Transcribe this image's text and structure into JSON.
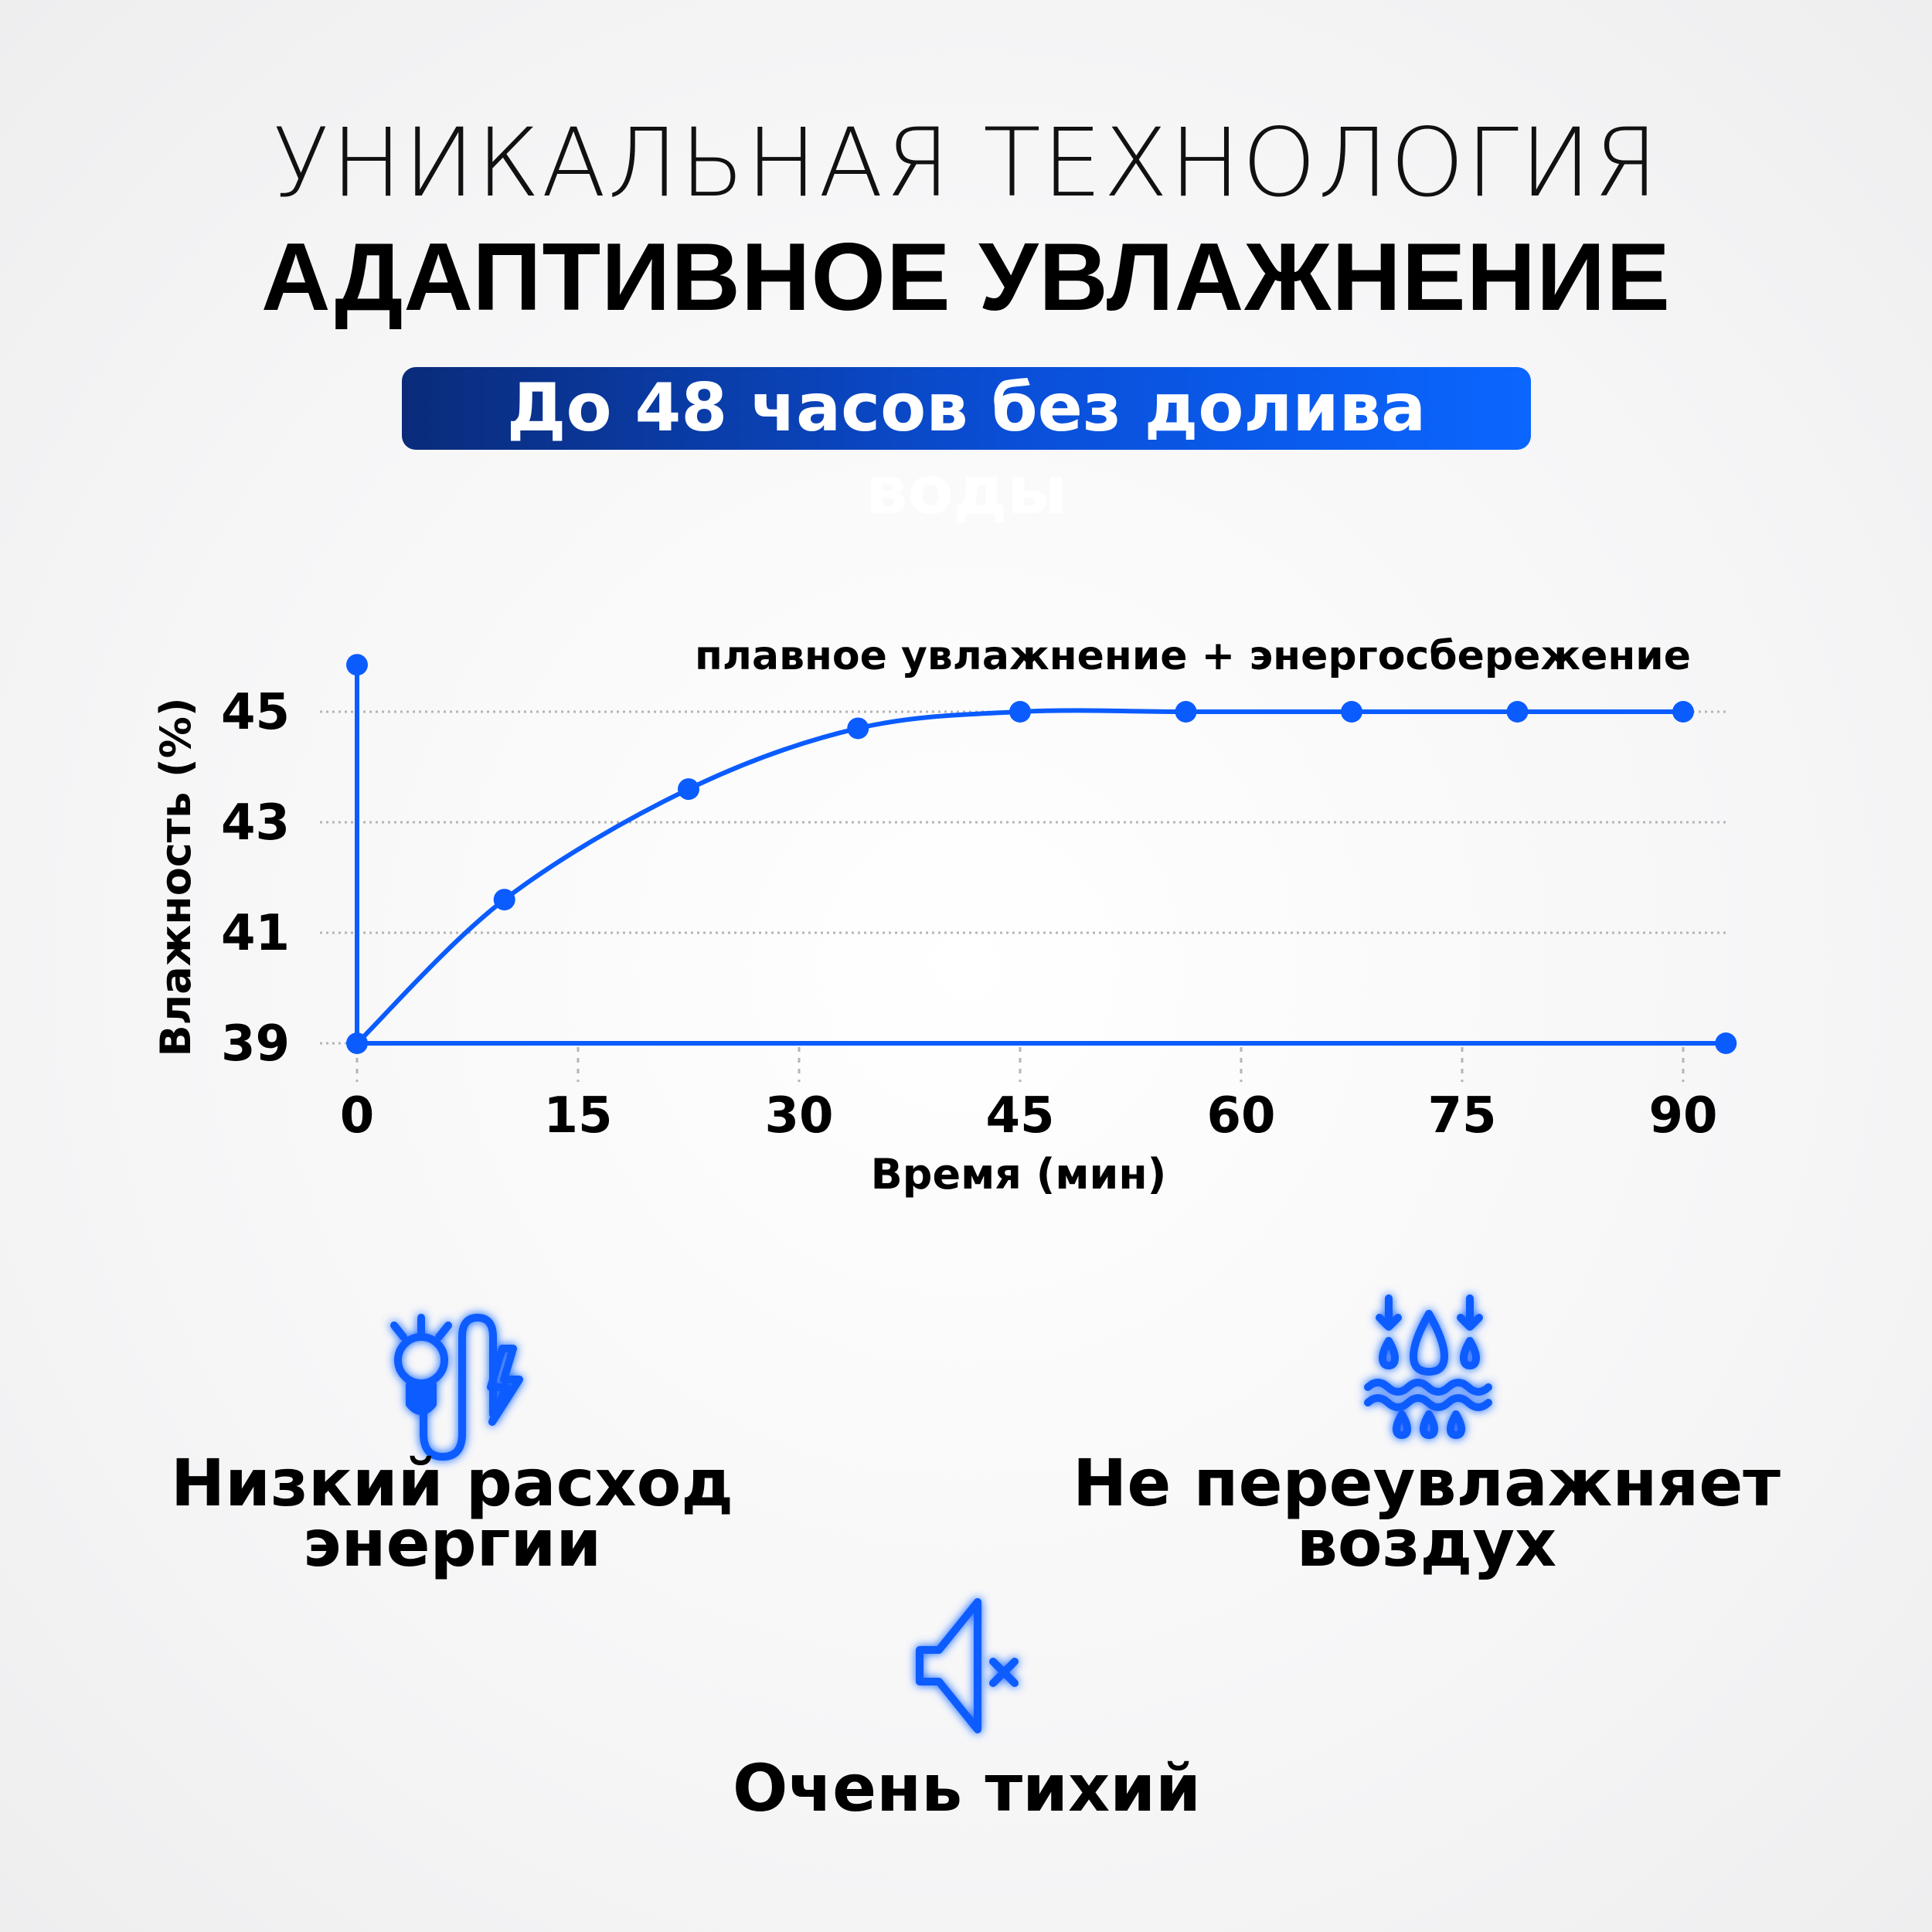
{
  "header": {
    "line1": "УНИКАЛЬНАЯ ТЕХНОЛОГИЯ",
    "line2": "АДАПТИВНОЕ УВЛАЖНЕНИЕ",
    "badge": "До 48 часов без долива воды"
  },
  "colors": {
    "accent": "#0b5cff",
    "text": "#000000",
    "grid": "#b5b5b5"
  },
  "chart_data": {
    "type": "line",
    "title": "",
    "annotation": "плавное увлажнение + энергосбережение",
    "xlabel": "Время (мин)",
    "ylabel": "Влажность (%)",
    "xlim": [
      0,
      90
    ],
    "ylim": [
      39,
      45
    ],
    "x_ticks": [
      "0",
      "15",
      "30",
      "45",
      "60",
      "75",
      "90"
    ],
    "y_ticks": [
      "39",
      "41",
      "43",
      "45"
    ],
    "grid": "horizontal dotted",
    "series": [
      {
        "x": [
          0,
          10,
          22.5,
          34,
          45,
          56.25,
          67.5,
          78.75,
          90
        ],
        "y": [
          39,
          41.6,
          43.6,
          44.7,
          45,
          45,
          45,
          45,
          45
        ]
      }
    ]
  },
  "features": [
    {
      "icon": "bulb-plug-lightning-icon",
      "line1": "Низкий расход",
      "line2": "энергии"
    },
    {
      "icon": "water-drops-waves-icon",
      "line1": "Не переувлажняет",
      "line2": "воздух"
    },
    {
      "icon": "speaker-mute-icon",
      "line1": "Очень тихий",
      "line2": ""
    }
  ]
}
